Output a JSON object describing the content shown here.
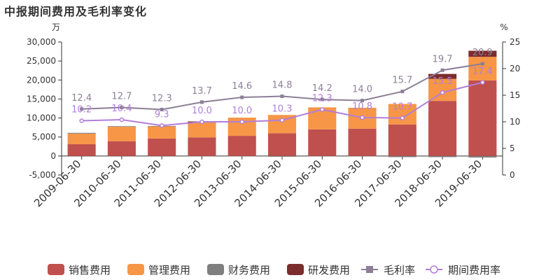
{
  "title": "中报期间费用及毛利率变化",
  "chart_data": {
    "type": "bar",
    "stacked": true,
    "categories": [
      "2009-06-30",
      "2010-06-30",
      "2011-06-30",
      "2012-06-30",
      "2013-06-30",
      "2014-06-30",
      "2015-06-30",
      "2016-06-30",
      "2017-06-30",
      "2018-06-30",
      "2019-06-30"
    ],
    "left_axis": {
      "unit": "万",
      "min": -5000,
      "max": 30000,
      "step": 5000,
      "ticks": [
        "-5,000",
        "0",
        "5,000",
        "10,000",
        "15,000",
        "20,000",
        "25,000",
        "30,000"
      ]
    },
    "right_axis": {
      "unit": "%",
      "min": 0,
      "max": 25,
      "step": 5,
      "ticks": [
        "0",
        "5",
        "10",
        "15",
        "20",
        "25"
      ]
    },
    "bar_series": [
      {
        "name": "销售费用",
        "color": "#c0504d",
        "values": [
          3100,
          3900,
          4600,
          4900,
          5300,
          6000,
          7000,
          7200,
          8300,
          14500,
          19900
        ]
      },
      {
        "name": "管理费用",
        "color": "#f79646",
        "values": [
          2800,
          3800,
          3200,
          3900,
          4800,
          4800,
          5800,
          5500,
          5400,
          5800,
          6200
        ]
      },
      {
        "name": "财务费用",
        "color": "#7f7f7f",
        "values": [
          200,
          150,
          100,
          -50,
          -100,
          -200,
          -100,
          -100,
          -300,
          -300,
          -400
        ]
      },
      {
        "name": "研发费用",
        "color": "#7b2c2c",
        "values": [
          0,
          0,
          0,
          300,
          0,
          0,
          0,
          0,
          0,
          1300,
          1600
        ]
      }
    ],
    "line_series": [
      {
        "name": "毛利率",
        "color": "#8c7f96",
        "marker": "square",
        "values": [
          12.4,
          12.7,
          12.3,
          13.7,
          14.6,
          14.8,
          14.2,
          14.0,
          15.7,
          19.7,
          20.9
        ],
        "labels": [
          "12.4",
          "12.7",
          "12.3",
          "13.7",
          "14.6",
          "14.8",
          "14.2",
          "14.0",
          "15.7",
          "19.7",
          "20.9"
        ]
      },
      {
        "name": "期间费用率",
        "color": "#b27ed8",
        "marker": "circle",
        "values": [
          10.2,
          10.4,
          9.3,
          10.0,
          10.0,
          10.3,
          12.3,
          10.8,
          10.7,
          15.5,
          17.4
        ],
        "labels": [
          "10.2",
          "10.4",
          "9.3",
          "10.0",
          "10.0",
          "10.3",
          "12.3",
          "10.8",
          "10.7",
          "15.5",
          "17.4"
        ]
      }
    ],
    "legend_position": "bottom"
  }
}
